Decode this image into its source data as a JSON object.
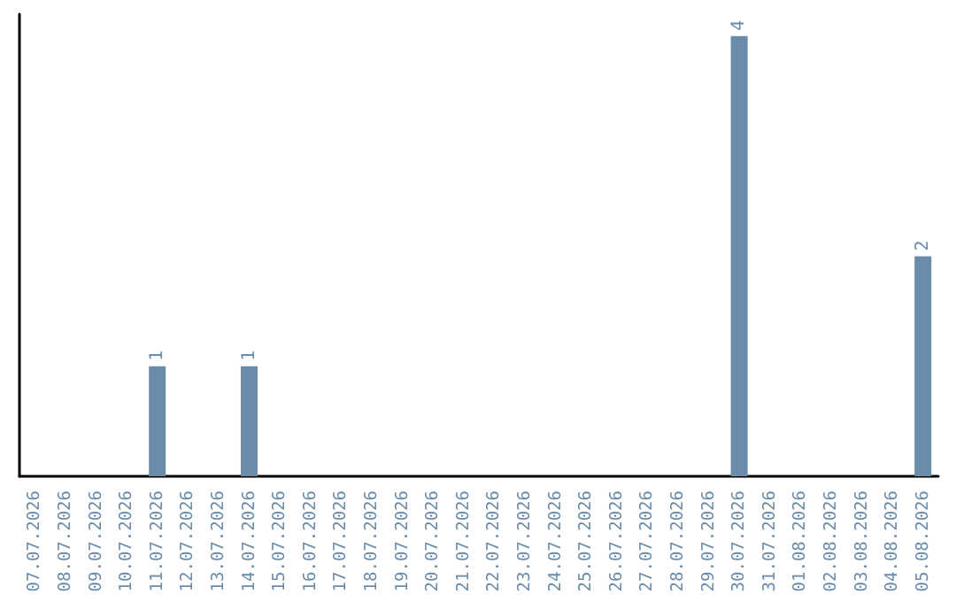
{
  "chart_data": {
    "type": "bar",
    "categories": [
      "07.07.2026",
      "08.07.2026",
      "09.07.2026",
      "10.07.2026",
      "11.07.2026",
      "12.07.2026",
      "13.07.2026",
      "14.07.2026",
      "15.07.2026",
      "16.07.2026",
      "17.07.2026",
      "18.07.2026",
      "19.07.2026",
      "20.07.2026",
      "21.07.2026",
      "22.07.2026",
      "23.07.2026",
      "24.07.2026",
      "25.07.2026",
      "26.07.2026",
      "27.07.2026",
      "28.07.2026",
      "29.07.2026",
      "30.07.2026",
      "31.07.2026",
      "01.08.2026",
      "02.08.2026",
      "03.08.2026",
      "04.08.2026",
      "05.08.2026"
    ],
    "values": [
      0,
      0,
      0,
      0,
      1,
      0,
      0,
      1,
      0,
      0,
      0,
      0,
      0,
      0,
      0,
      0,
      0,
      0,
      0,
      0,
      0,
      0,
      0,
      4,
      0,
      0,
      0,
      0,
      0,
      2
    ],
    "value_labels": [
      null,
      null,
      null,
      null,
      "1",
      null,
      null,
      "1",
      null,
      null,
      null,
      null,
      null,
      null,
      null,
      null,
      null,
      null,
      null,
      null,
      null,
      null,
      null,
      "4",
      null,
      null,
      null,
      null,
      null,
      "2"
    ],
    "color": "#6a8caa",
    "grid": false,
    "tick_labels": "x"
  }
}
